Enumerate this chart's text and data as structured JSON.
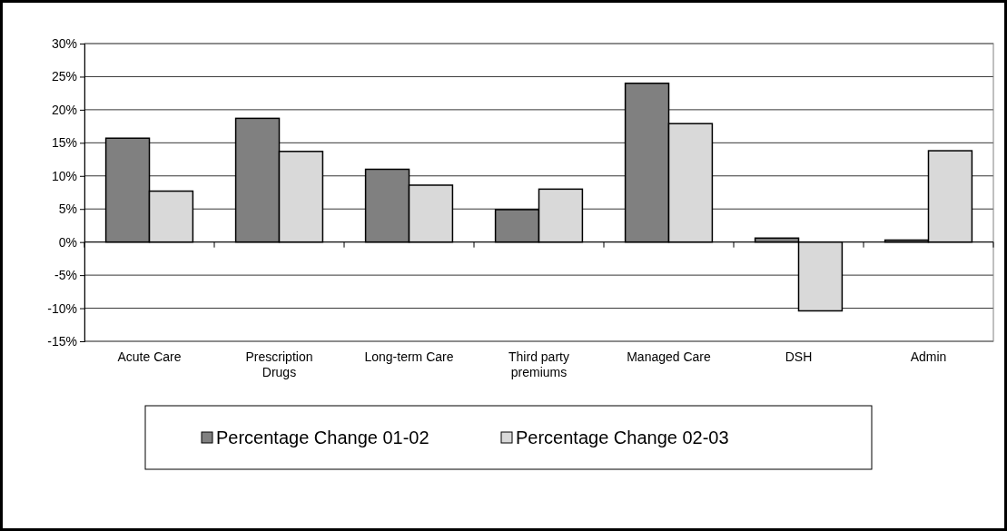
{
  "chart_data": {
    "type": "bar",
    "categories": [
      "Acute Care",
      "Prescription Drugs",
      "Long-term Care",
      "Third party premiums",
      "Managed Care",
      "DSH",
      "Admin"
    ],
    "series": [
      {
        "name": "Percentage Change 01-02",
        "color": "#808080",
        "values": [
          15.7,
          18.7,
          11.0,
          4.9,
          24.0,
          0.6,
          0.3
        ]
      },
      {
        "name": "Percentage Change 02-03",
        "color": "#d9d9d9",
        "values": [
          7.7,
          13.7,
          8.6,
          8.0,
          17.9,
          -10.4,
          13.8
        ]
      }
    ],
    "ylim": [
      -15,
      30
    ],
    "yticks": [
      {
        "value": -15,
        "label": "-15%"
      },
      {
        "value": -10,
        "label": "-10%"
      },
      {
        "value": -5,
        "label": "-5%"
      },
      {
        "value": 0,
        "label": "0%"
      },
      {
        "value": 5,
        "label": "5%"
      },
      {
        "value": 10,
        "label": "10%"
      },
      {
        "value": 15,
        "label": "15%"
      },
      {
        "value": 20,
        "label": "20%"
      },
      {
        "value": 25,
        "label": "25%"
      },
      {
        "value": 30,
        "label": "30%"
      }
    ],
    "grid": "y",
    "legend": "bottom"
  }
}
